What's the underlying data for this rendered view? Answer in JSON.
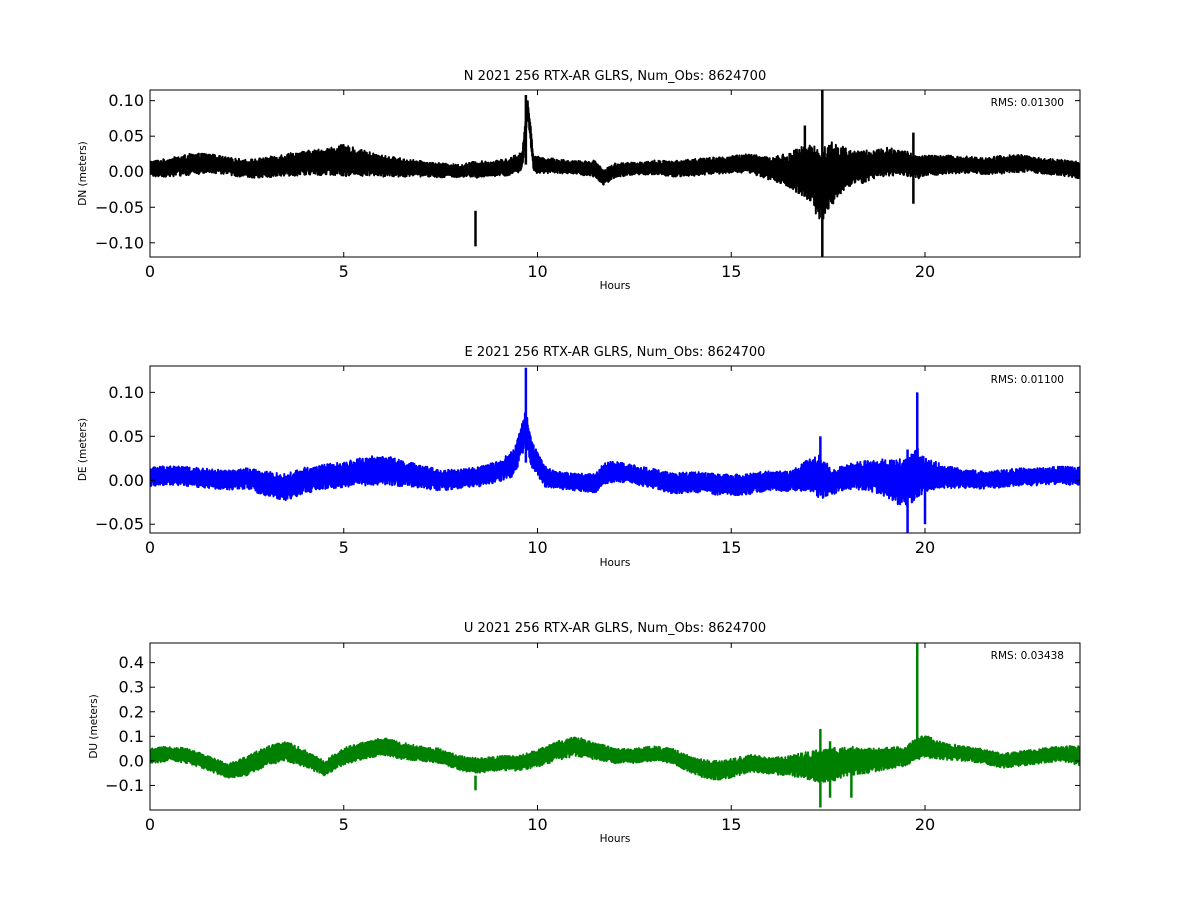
{
  "chart_data": [
    {
      "type": "line",
      "component": "N",
      "title": "N 2021 256 RTX-AR  GLRS, Num_Obs: 8624700",
      "xlabel": "Hours",
      "ylabel": "DN (meters)",
      "xlim": [
        0,
        24
      ],
      "ylim": [
        -0.12,
        0.115
      ],
      "xticks": [
        0,
        5,
        10,
        15,
        20
      ],
      "xtick_labels": [
        "0",
        "5",
        "10",
        "15",
        "20"
      ],
      "yticks": [
        0.1,
        0.05,
        0.0,
        -0.05,
        -0.1
      ],
      "ytick_labels": [
        "0.10",
        "0.05",
        "0.00",
        "−0.05",
        "−0.10"
      ],
      "color": "#000000",
      "rms_label": "RMS:  0.01300",
      "rms_color": "#0000ff",
      "grid": false,
      "series": [
        {
          "x": [
            0,
            0.5,
            1,
            1.5,
            2,
            2.5,
            3,
            3.5,
            4,
            4.5,
            5,
            5.5,
            6,
            6.5,
            7,
            7.5,
            8,
            8.4,
            8.8,
            9.2,
            9.6,
            9.75,
            9.9,
            10.5,
            11,
            11.5,
            11.7,
            12,
            12.5,
            13,
            13.5,
            14,
            14.5,
            15,
            15.5,
            16,
            16.5,
            17,
            17.3,
            17.6,
            18,
            18.5,
            19,
            19.5,
            19.8,
            20,
            20.5,
            21,
            21.5,
            22,
            22.5,
            23,
            23.5,
            24
          ],
          "y": [
            0.004,
            0.006,
            0.01,
            0.012,
            0.008,
            0.004,
            0.006,
            0.01,
            0.012,
            0.014,
            0.016,
            0.012,
            0.008,
            0.006,
            0.004,
            0.002,
            0.001,
            0.003,
            0.004,
            0.006,
            0.014,
            0.09,
            0.01,
            0.008,
            0.006,
            0.004,
            -0.008,
            0.002,
            0.004,
            0.006,
            0.004,
            0.006,
            0.008,
            0.01,
            0.012,
            0.004,
            0.002,
            0.0,
            -0.02,
            -0.002,
            0.004,
            0.008,
            0.014,
            0.012,
            0.006,
            0.008,
            0.01,
            0.01,
            0.008,
            0.01,
            0.012,
            0.008,
            0.006,
            0.002
          ],
          "amplitude": [
            0.011,
            0.013,
            0.015,
            0.014,
            0.012,
            0.013,
            0.014,
            0.016,
            0.017,
            0.019,
            0.022,
            0.018,
            0.015,
            0.013,
            0.011,
            0.01,
            0.009,
            0.012,
            0.011,
            0.012,
            0.014,
            0.015,
            0.012,
            0.01,
            0.009,
            0.012,
            0.011,
            0.01,
            0.009,
            0.01,
            0.011,
            0.012,
            0.012,
            0.012,
            0.014,
            0.016,
            0.025,
            0.04,
            0.055,
            0.045,
            0.028,
            0.022,
            0.02,
            0.018,
            0.016,
            0.015,
            0.013,
            0.012,
            0.012,
            0.013,
            0.012,
            0.011,
            0.011,
            0.012
          ],
          "spikes": [
            {
              "x": 8.4,
              "y0": -0.055,
              "y1": -0.105
            },
            {
              "x": 9.7,
              "y0": 0.01,
              "y1": 0.108
            },
            {
              "x": 16.9,
              "y0": -0.035,
              "y1": 0.065
            },
            {
              "x": 17.35,
              "y0": -0.12,
              "y1": 0.115
            },
            {
              "x": 19.7,
              "y0": -0.045,
              "y1": 0.055
            }
          ]
        }
      ]
    },
    {
      "type": "line",
      "component": "E",
      "title": "E 2021 256 RTX-AR  GLRS, Num_Obs: 8624700",
      "xlabel": "Hours",
      "ylabel": "DE (meters)",
      "xlim": [
        0,
        24
      ],
      "ylim": [
        -0.06,
        0.13
      ],
      "xticks": [
        0,
        5,
        10,
        15,
        20
      ],
      "xtick_labels": [
        "0",
        "5",
        "10",
        "15",
        "20"
      ],
      "yticks": [
        0.1,
        0.05,
        0.0,
        -0.05
      ],
      "ytick_labels": [
        "0.10",
        "0.05",
        "0.00",
        "−0.05"
      ],
      "color": "#0000ff",
      "rms_label": "RMS:  0.01100",
      "rms_color": "#0000ff",
      "grid": false,
      "series": [
        {
          "x": [
            0,
            0.5,
            1,
            1.5,
            2,
            2.5,
            3,
            3.5,
            4,
            4.5,
            5,
            5.5,
            6,
            6.5,
            7,
            7.5,
            8,
            8.5,
            9,
            9.4,
            9.7,
            9.85,
            10.2,
            10.5,
            11,
            11.5,
            11.7,
            12,
            12.5,
            13,
            13.5,
            14,
            14.5,
            15,
            15.5,
            16,
            16.5,
            17,
            17.3,
            17.6,
            18,
            18.5,
            19,
            19.5,
            19.8,
            20,
            20.5,
            21,
            21.5,
            22,
            22.5,
            23,
            23.5,
            24
          ],
          "y": [
            0.004,
            0.006,
            0.004,
            0.002,
            0.0,
            0.002,
            -0.004,
            -0.008,
            0.0,
            0.004,
            0.006,
            0.01,
            0.012,
            0.008,
            0.004,
            0.0,
            0.002,
            0.004,
            0.01,
            0.02,
            0.06,
            0.03,
            0.004,
            0.0,
            -0.002,
            -0.004,
            0.008,
            0.01,
            0.006,
            0.002,
            -0.004,
            -0.002,
            -0.004,
            -0.006,
            -0.004,
            0.0,
            -0.002,
            0.006,
            0.004,
            -0.002,
            0.004,
            0.006,
            0.002,
            -0.004,
            0.01,
            0.006,
            0.004,
            0.002,
            0.0,
            0.002,
            0.004,
            0.004,
            0.006,
            0.004
          ],
          "amplitude": [
            0.011,
            0.011,
            0.011,
            0.011,
            0.011,
            0.012,
            0.014,
            0.015,
            0.015,
            0.014,
            0.015,
            0.016,
            0.017,
            0.015,
            0.013,
            0.012,
            0.011,
            0.011,
            0.012,
            0.015,
            0.02,
            0.015,
            0.012,
            0.01,
            0.01,
            0.011,
            0.012,
            0.012,
            0.011,
            0.011,
            0.012,
            0.012,
            0.012,
            0.012,
            0.012,
            0.011,
            0.012,
            0.018,
            0.025,
            0.015,
            0.014,
            0.017,
            0.022,
            0.028,
            0.03,
            0.02,
            0.013,
            0.011,
            0.01,
            0.01,
            0.01,
            0.01,
            0.01,
            0.011
          ],
          "spikes": [
            {
              "x": 9.7,
              "y0": 0.02,
              "y1": 0.128
            },
            {
              "x": 17.3,
              "y0": -0.01,
              "y1": 0.05
            },
            {
              "x": 19.55,
              "y0": -0.06,
              "y1": 0.035
            },
            {
              "x": 19.8,
              "y0": 0.0,
              "y1": 0.1
            },
            {
              "x": 20.0,
              "y0": -0.05,
              "y1": 0.02
            }
          ]
        }
      ]
    },
    {
      "type": "line",
      "component": "U",
      "title": "U 2021 256 RTX-AR  GLRS, Num_Obs: 8624700",
      "xlabel": "Hours",
      "ylabel": "DU (meters)",
      "xlim": [
        0,
        24
      ],
      "ylim": [
        -0.2,
        0.48
      ],
      "xticks": [
        0,
        5,
        10,
        15,
        20
      ],
      "xtick_labels": [
        "0",
        "5",
        "10",
        "15",
        "20"
      ],
      "yticks": [
        0.4,
        0.3,
        0.2,
        0.1,
        0.0,
        -0.1
      ],
      "ytick_labels": [
        "0.4",
        "0.3",
        "0.2",
        "0.1",
        "0.0",
        "−0.1"
      ],
      "color": "#008000",
      "rms_label": "RMS:  0.03438",
      "rms_color": "#0000ff",
      "grid": false,
      "series": [
        {
          "x": [
            0,
            0.5,
            1,
            1.5,
            2,
            2.5,
            3,
            3.5,
            4,
            4.5,
            5,
            5.5,
            6,
            6.5,
            7,
            7.5,
            8,
            8.5,
            9,
            9.5,
            10,
            10.5,
            11,
            11.5,
            12,
            12.5,
            13,
            13.5,
            14,
            14.5,
            15,
            15.5,
            16,
            16.5,
            17,
            17.5,
            18,
            18.5,
            19,
            19.5,
            19.8,
            20,
            20.5,
            21,
            21.5,
            22,
            22.5,
            23,
            23.5,
            24
          ],
          "y": [
            0.02,
            0.03,
            0.02,
            -0.01,
            -0.04,
            -0.02,
            0.02,
            0.04,
            0.01,
            -0.03,
            0.02,
            0.04,
            0.06,
            0.04,
            0.03,
            0.02,
            -0.01,
            -0.02,
            -0.01,
            -0.01,
            0.01,
            0.04,
            0.06,
            0.04,
            0.02,
            0.02,
            0.03,
            0.02,
            -0.02,
            -0.04,
            -0.03,
            -0.01,
            -0.02,
            -0.02,
            -0.02,
            -0.02,
            0.0,
            0.0,
            0.01,
            0.02,
            0.05,
            0.06,
            0.04,
            0.03,
            0.02,
            0.0,
            0.01,
            0.02,
            0.03,
            0.02
          ],
          "amplitude": [
            0.03,
            0.03,
            0.03,
            0.03,
            0.03,
            0.04,
            0.04,
            0.04,
            0.035,
            0.03,
            0.035,
            0.035,
            0.035,
            0.035,
            0.03,
            0.03,
            0.03,
            0.03,
            0.03,
            0.03,
            0.035,
            0.04,
            0.04,
            0.035,
            0.03,
            0.03,
            0.03,
            0.03,
            0.035,
            0.04,
            0.04,
            0.035,
            0.035,
            0.04,
            0.06,
            0.07,
            0.06,
            0.05,
            0.045,
            0.04,
            0.045,
            0.045,
            0.035,
            0.03,
            0.03,
            0.03,
            0.03,
            0.03,
            0.03,
            0.04
          ],
          "spikes": [
            {
              "x": 8.4,
              "y0": -0.06,
              "y1": -0.12
            },
            {
              "x": 17.3,
              "y0": -0.19,
              "y1": 0.13
            },
            {
              "x": 17.55,
              "y0": -0.15,
              "y1": 0.08
            },
            {
              "x": 18.1,
              "y0": -0.15,
              "y1": 0.05
            },
            {
              "x": 19.8,
              "y0": 0.05,
              "y1": 0.48
            }
          ]
        }
      ]
    }
  ]
}
